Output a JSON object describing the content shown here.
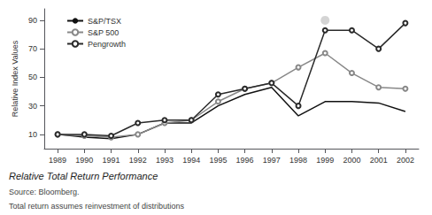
{
  "chart_data": {
    "type": "line",
    "title": "Relative Total Return Performance",
    "ylabel": "Relative Index Values",
    "annotations": [
      "Source: Bloomberg.",
      "Total return assumes reinvestment of distributions"
    ],
    "x": [
      1989,
      1990,
      1991,
      1992,
      1993,
      1994,
      1995,
      1996,
      1997,
      1998,
      1999,
      2000,
      2001,
      2002
    ],
    "series": [
      {
        "name": "S&P/TSX",
        "color": "#111111",
        "marker": "none",
        "values": [
          10,
          8,
          7,
          10,
          18,
          18,
          30,
          38,
          43,
          23,
          33,
          33,
          32,
          26
        ]
      },
      {
        "name": "S&P 500",
        "color": "#888888",
        "marker": "circle",
        "values": [
          10,
          9,
          8,
          10,
          18,
          20,
          33,
          42,
          46,
          57,
          67,
          53,
          43,
          42
        ]
      },
      {
        "name": "Pengrowth",
        "color": "#2a2a2a",
        "marker": "circle",
        "values": [
          10,
          10,
          9,
          18,
          20,
          20,
          38,
          42,
          46,
          30,
          83,
          83,
          70,
          88
        ]
      },
      {
        "type": "scatter",
        "color": "#aaaaaa",
        "marker": "circle",
        "x": [
          1999
        ],
        "values": [
          90
        ]
      }
    ],
    "xlim": [
      1988.5,
      2002.5
    ],
    "xticks": [
      1989,
      1990,
      1991,
      1992,
      1993,
      1994,
      1995,
      1996,
      1997,
      1998,
      1999,
      2000,
      2001,
      2002
    ],
    "ylim": [
      0,
      98
    ],
    "yticks": [
      10,
      30,
      50,
      70,
      90
    ],
    "grid": false,
    "legend": "upper left"
  }
}
